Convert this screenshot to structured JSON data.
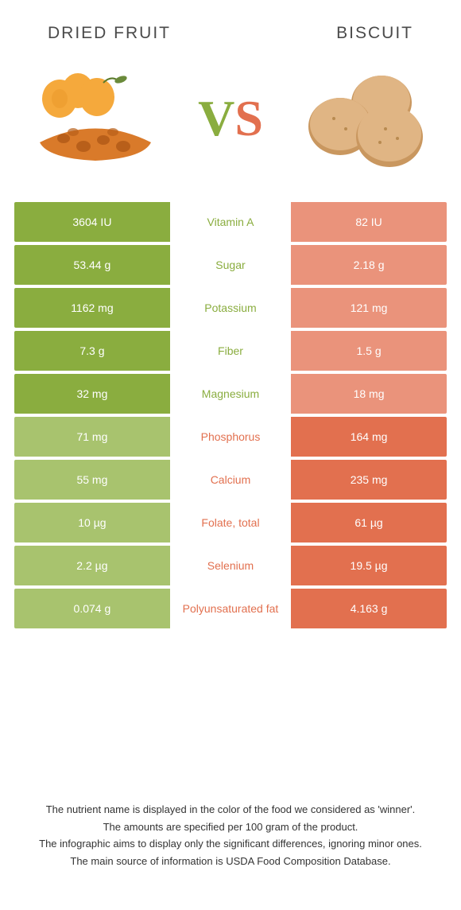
{
  "header": {
    "left_title": "DRIED FRUIT",
    "right_title": "BISCUIT"
  },
  "vs": {
    "v": "V",
    "s": "S"
  },
  "colors": {
    "green_strong": "#8aad3f",
    "green_weak": "#a8c36e",
    "orange_strong": "#e2704f",
    "orange_weak": "#ea937b",
    "background": "#ffffff",
    "text": "#333333"
  },
  "rows": [
    {
      "nutrient": "Vitamin A",
      "left": "3604 IU",
      "right": "82 IU",
      "winner": "left"
    },
    {
      "nutrient": "Sugar",
      "left": "53.44 g",
      "right": "2.18 g",
      "winner": "left"
    },
    {
      "nutrient": "Potassium",
      "left": "1162 mg",
      "right": "121 mg",
      "winner": "left"
    },
    {
      "nutrient": "Fiber",
      "left": "7.3 g",
      "right": "1.5 g",
      "winner": "left"
    },
    {
      "nutrient": "Magnesium",
      "left": "32 mg",
      "right": "18 mg",
      "winner": "left"
    },
    {
      "nutrient": "Phosphorus",
      "left": "71 mg",
      "right": "164 mg",
      "winner": "right"
    },
    {
      "nutrient": "Calcium",
      "left": "55 mg",
      "right": "235 mg",
      "winner": "right"
    },
    {
      "nutrient": "Folate, total",
      "left": "10 µg",
      "right": "61 µg",
      "winner": "right"
    },
    {
      "nutrient": "Selenium",
      "left": "2.2 µg",
      "right": "19.5 µg",
      "winner": "right"
    },
    {
      "nutrient": "Polyunsaturated fat",
      "left": "0.074 g",
      "right": "4.163 g",
      "winner": "right"
    }
  ],
  "footer": {
    "line1": "The nutrient name is displayed in the color of the food we considered as 'winner'.",
    "line2": "The amounts are specified per 100 gram of the product.",
    "line3": "The infographic aims to display only the significant differences, ignoring minor ones.",
    "line4": "The main source of information is USDA Food Composition Database."
  }
}
